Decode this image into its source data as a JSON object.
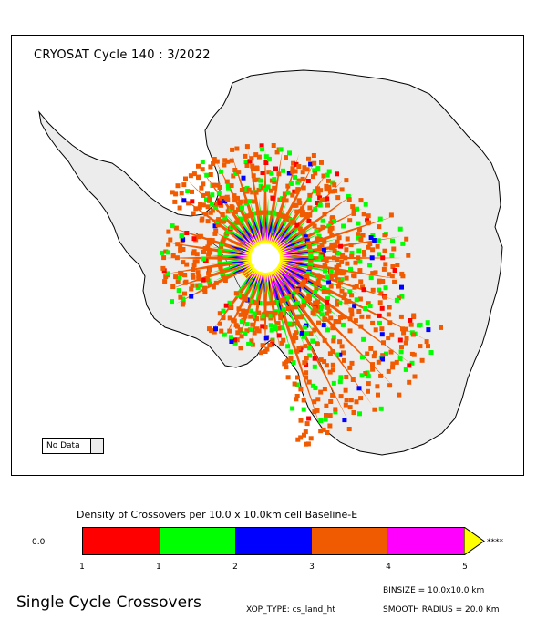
{
  "map": {
    "title": "CRYOSAT Cycle 140 : 3/2022",
    "nodata_label": "No Data",
    "colors": {
      "land": "#ececec",
      "c1": "#ff0000",
      "c2": "#00ff00",
      "c3": "#0000ff",
      "c4": "#f05a00",
      "c5": "#ff00ff",
      "over": "#ffff00"
    }
  },
  "legend": {
    "title": "Density of Crossovers per  10.0 x  10.0km cell Baseline-E",
    "zero_label": "0.0",
    "over_label": "****",
    "ticks": [
      "1",
      "1",
      "2",
      "3",
      "4",
      "5"
    ],
    "colors": [
      "#ff0000",
      "#00ff00",
      "#0000ff",
      "#f05a00",
      "#ff00ff"
    ],
    "arrow_color": "#ffff00"
  },
  "footer": {
    "title": "Single Cycle Crossovers",
    "binsize": "BINSIZE =  10.0x10.0 km",
    "xop_type": "XOP_TYPE:  cs_land_ht",
    "smooth_radius": "SMOOTH RADIUS =   20.0 Km"
  }
}
